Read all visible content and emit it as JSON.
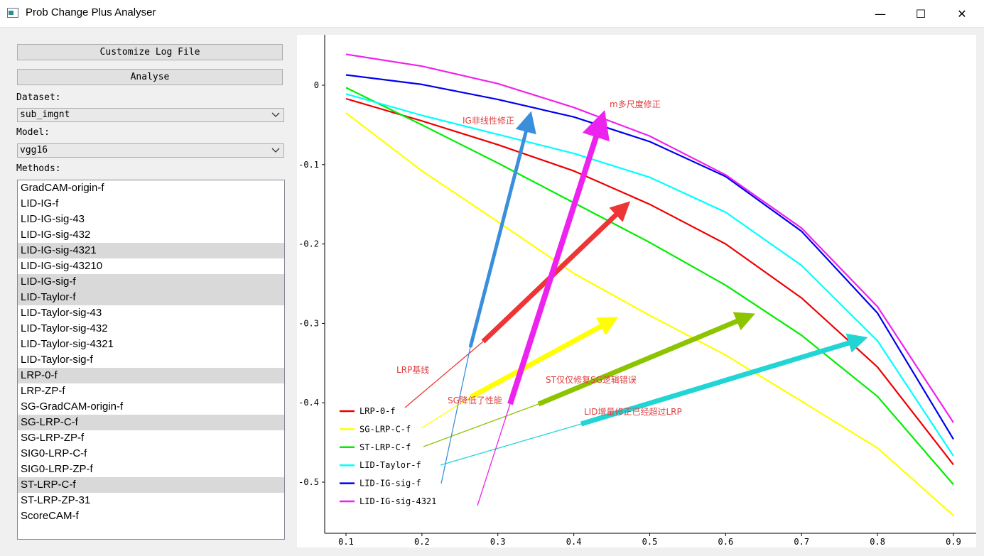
{
  "window": {
    "title": "Prob Change Plus Analyser",
    "minimize_glyph": "—",
    "maximize_glyph": "☐",
    "close_glyph": "✕"
  },
  "controls": {
    "customize_label": "Customize Log File",
    "analyse_label": "Analyse",
    "dataset_label": "Dataset:",
    "dataset_value": "sub_imgnt",
    "model_label": "Model:",
    "model_value": "vgg16",
    "methods_label": "Methods:"
  },
  "methods": [
    {
      "label": "GradCAM-origin-f",
      "selected": false
    },
    {
      "label": "LID-IG-f",
      "selected": false
    },
    {
      "label": "LID-IG-sig-43",
      "selected": false
    },
    {
      "label": "LID-IG-sig-432",
      "selected": false
    },
    {
      "label": "LID-IG-sig-4321",
      "selected": true
    },
    {
      "label": "LID-IG-sig-43210",
      "selected": false
    },
    {
      "label": "LID-IG-sig-f",
      "selected": true
    },
    {
      "label": "LID-Taylor-f",
      "selected": true
    },
    {
      "label": "LID-Taylor-sig-43",
      "selected": false
    },
    {
      "label": "LID-Taylor-sig-432",
      "selected": false
    },
    {
      "label": "LID-Taylor-sig-4321",
      "selected": false
    },
    {
      "label": "LID-Taylor-sig-f",
      "selected": false
    },
    {
      "label": "LRP-0-f",
      "selected": true
    },
    {
      "label": "LRP-ZP-f",
      "selected": false
    },
    {
      "label": "SG-GradCAM-origin-f",
      "selected": false
    },
    {
      "label": "SG-LRP-C-f",
      "selected": true
    },
    {
      "label": "SG-LRP-ZP-f",
      "selected": false
    },
    {
      "label": "SIG0-LRP-C-f",
      "selected": false
    },
    {
      "label": "SIG0-LRP-ZP-f",
      "selected": false
    },
    {
      "label": "ST-LRP-C-f",
      "selected": true
    },
    {
      "label": "ST-LRP-ZP-31",
      "selected": false
    },
    {
      "label": "ScoreCAM-f",
      "selected": false
    }
  ],
  "chart_data": {
    "type": "line",
    "x": [
      0.1,
      0.2,
      0.3,
      0.4,
      0.5,
      0.6,
      0.7,
      0.8,
      0.9
    ],
    "xticks": [
      "0.1",
      "0.2",
      "0.3",
      "0.4",
      "0.5",
      "0.6",
      "0.7",
      "0.8",
      "0.9"
    ],
    "yticks": [
      0,
      -0.1,
      -0.2,
      -0.3,
      -0.4,
      -0.5
    ],
    "ytick_labels": [
      "0",
      "-0.1",
      "-0.2",
      "-0.3",
      "-0.4",
      "-0.5"
    ],
    "xlim": [
      0.06,
      0.92
    ],
    "ylim": [
      -0.56,
      0.062
    ],
    "grid": false,
    "legend_position": "bottom-left",
    "series": [
      {
        "name": "LRP-0-f",
        "color": "#ee0000",
        "values": [
          -0.017,
          -0.045,
          -0.075,
          -0.108,
          -0.15,
          -0.2,
          -0.268,
          -0.355,
          -0.478
        ]
      },
      {
        "name": "SG-LRP-C-f",
        "color": "#ffff00",
        "values": [
          -0.035,
          -0.108,
          -0.172,
          -0.237,
          -0.29,
          -0.34,
          -0.398,
          -0.457,
          -0.542
        ]
      },
      {
        "name": "ST-LRP-C-f",
        "color": "#00ee00",
        "values": [
          -0.003,
          -0.05,
          -0.098,
          -0.148,
          -0.198,
          -0.252,
          -0.315,
          -0.392,
          -0.503
        ]
      },
      {
        "name": "LID-Taylor-f",
        "color": "#00ffff",
        "values": [
          -0.011,
          -0.038,
          -0.062,
          -0.086,
          -0.116,
          -0.16,
          -0.227,
          -0.322,
          -0.467
        ]
      },
      {
        "name": "LID-IG-sig-f",
        "color": "#0000ee",
        "values": [
          0.013,
          0.001,
          -0.018,
          -0.04,
          -0.071,
          -0.115,
          -0.184,
          -0.287,
          -0.446
        ]
      },
      {
        "name": "LID-IG-sig-4321",
        "color": "#ee22ee",
        "values": [
          0.039,
          0.024,
          0.002,
          -0.028,
          -0.064,
          -0.113,
          -0.18,
          -0.279,
          -0.425
        ]
      }
    ],
    "annotations": [
      {
        "text": "IG非线性修正",
        "color": "#e04040"
      },
      {
        "text": "m多尺度修正",
        "color": "#e04040"
      },
      {
        "text": "LRP基线",
        "color": "#e04040"
      },
      {
        "text": "ST仅仅修复SG逻辑错误",
        "color": "#e04040"
      },
      {
        "text": "SG降低了性能",
        "color": "#e04040"
      },
      {
        "text": "LID增量修正已经超过LRP",
        "color": "#e04040"
      }
    ]
  }
}
